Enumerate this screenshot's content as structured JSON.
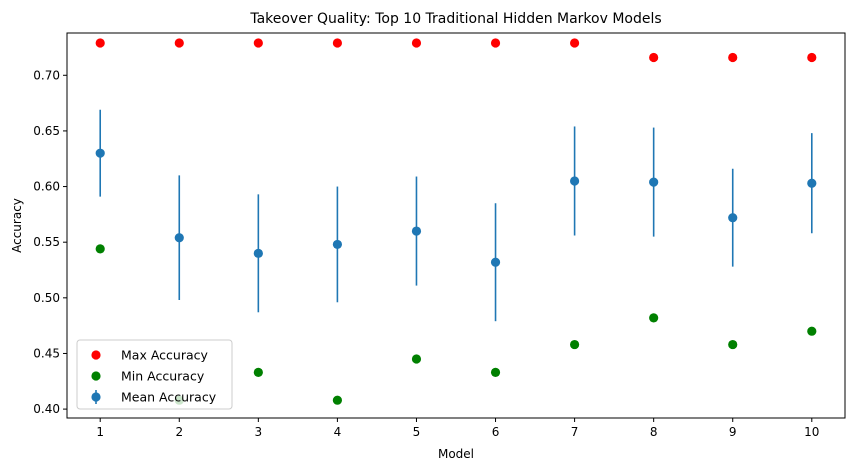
{
  "chart_data": {
    "type": "scatter",
    "title": "Takeover Quality: Top 10 Traditional Hidden Markov Models",
    "xlabel": "Model",
    "ylabel": "Accuracy",
    "x": [
      1,
      2,
      3,
      4,
      5,
      6,
      7,
      8,
      9,
      10
    ],
    "xlim": [
      0.58,
      10.42
    ],
    "ylim": [
      0.392,
      0.738
    ],
    "yticks": [
      "0.40",
      "0.45",
      "0.50",
      "0.55",
      "0.60",
      "0.65",
      "0.70"
    ],
    "grid": false,
    "legend_position": "lower-left",
    "series": [
      {
        "name": "Max Accuracy",
        "color": "#ff0000",
        "values": [
          0.729,
          0.729,
          0.729,
          0.729,
          0.729,
          0.729,
          0.729,
          0.716,
          0.716,
          0.716
        ]
      },
      {
        "name": "Min Accuracy",
        "color": "#008000",
        "values": [
          0.544,
          0.408,
          0.433,
          0.408,
          0.445,
          0.433,
          0.458,
          0.482,
          0.458,
          0.47
        ]
      },
      {
        "name": "Mean Accuracy",
        "color": "#1f77b4",
        "values": [
          0.63,
          0.554,
          0.54,
          0.548,
          0.56,
          0.532,
          0.605,
          0.604,
          0.572,
          0.603
        ],
        "error": [
          0.039,
          0.056,
          0.053,
          0.052,
          0.049,
          0.053,
          0.049,
          0.049,
          0.044,
          0.045
        ]
      }
    ]
  }
}
